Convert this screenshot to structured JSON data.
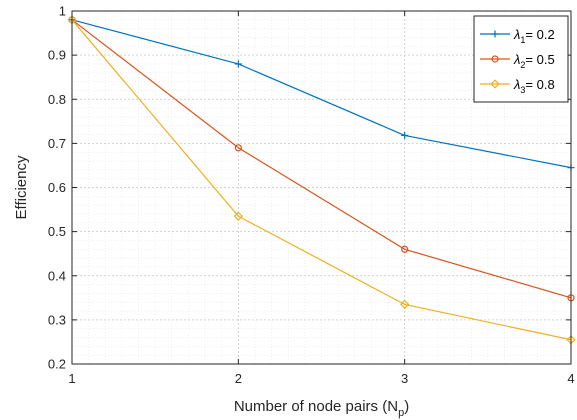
{
  "chart_data": {
    "type": "line",
    "xlabel": "Number of node pairs (N",
    "xlabel_sub": "p",
    "xlabel_end": ")",
    "ylabel": "Efficiency",
    "xlim": [
      1,
      4
    ],
    "ylim": [
      0.2,
      1.0
    ],
    "xticks": [
      1,
      2,
      3,
      4
    ],
    "yticks": [
      0.2,
      0.3,
      0.4,
      0.5,
      0.6,
      0.7,
      0.8,
      0.9,
      1.0
    ],
    "ytick_labels": [
      "0.2",
      "0.3",
      "0.4",
      "0.5",
      "0.6",
      "0.7",
      "0.8",
      "0.9",
      "1"
    ],
    "grid": true,
    "minor_grid": true,
    "legend_position": "top-right",
    "x": [
      1,
      2,
      3,
      4
    ],
    "series": [
      {
        "name": "λ1= 0.2",
        "symbol": "λ",
        "sub": "1",
        "value_text": "= 0.2",
        "marker": "plus",
        "color": "#0072BD",
        "values": [
          0.98,
          0.88,
          0.718,
          0.645
        ]
      },
      {
        "name": "λ2= 0.5",
        "symbol": "λ",
        "sub": "2",
        "value_text": "= 0.5",
        "marker": "circle",
        "color": "#D95319",
        "values": [
          0.98,
          0.69,
          0.46,
          0.35
        ]
      },
      {
        "name": "λ3= 0.8",
        "symbol": "λ",
        "sub": "3",
        "value_text": "= 0.8",
        "marker": "diamond",
        "color": "#EDB120",
        "values": [
          0.98,
          0.535,
          0.335,
          0.255
        ]
      }
    ]
  }
}
